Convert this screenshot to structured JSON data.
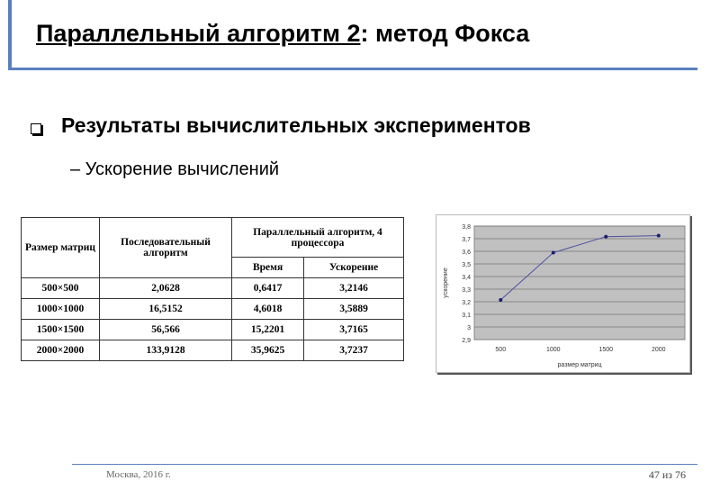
{
  "title": {
    "main": "Параллельный алгоритм 2",
    "rest": ": метод Фокса"
  },
  "bullet": "Результаты вычислительных экспериментов",
  "subbullet": "– Ускорение вычислений",
  "table": {
    "headers": {
      "size": "Размер матриц",
      "serial": "Последовательный алгоритм",
      "parallel": "Параллельный алгоритм, 4 процессора",
      "time": "Время",
      "speedup": "Ускорение"
    },
    "rows": [
      [
        "500×500",
        "2,0628",
        "0,6417",
        "3,2146"
      ],
      [
        "1000×1000",
        "16,5152",
        "4,6018",
        "3,5889"
      ],
      [
        "1500×1500",
        "56,566",
        "15,2201",
        "3,7165"
      ],
      [
        "2000×2000",
        "133,9128",
        "35,9625",
        "3,7237"
      ]
    ]
  },
  "chart_data": {
    "type": "line",
    "categories": [
      "500",
      "1000",
      "1500",
      "2000"
    ],
    "values": [
      3.2146,
      3.5889,
      3.7165,
      3.7237
    ],
    "xlabel": "размер матриц",
    "ylabel": "ускорение",
    "ylim": [
      2.9,
      3.8
    ],
    "yticks": [
      "2,9",
      "3",
      "3,1",
      "3,2",
      "3,3",
      "3,4",
      "3,5",
      "3,6",
      "3,7",
      "3,8"
    ],
    "grid": true,
    "plot_bg": "#c0c0c0",
    "line_color": "#4b4fa0",
    "marker_color": "#1a1f6e"
  },
  "footer": {
    "left": "Москва, 2016 г.",
    "right": "47 из 76"
  },
  "colors": {
    "accent": "#5b7fc0"
  }
}
